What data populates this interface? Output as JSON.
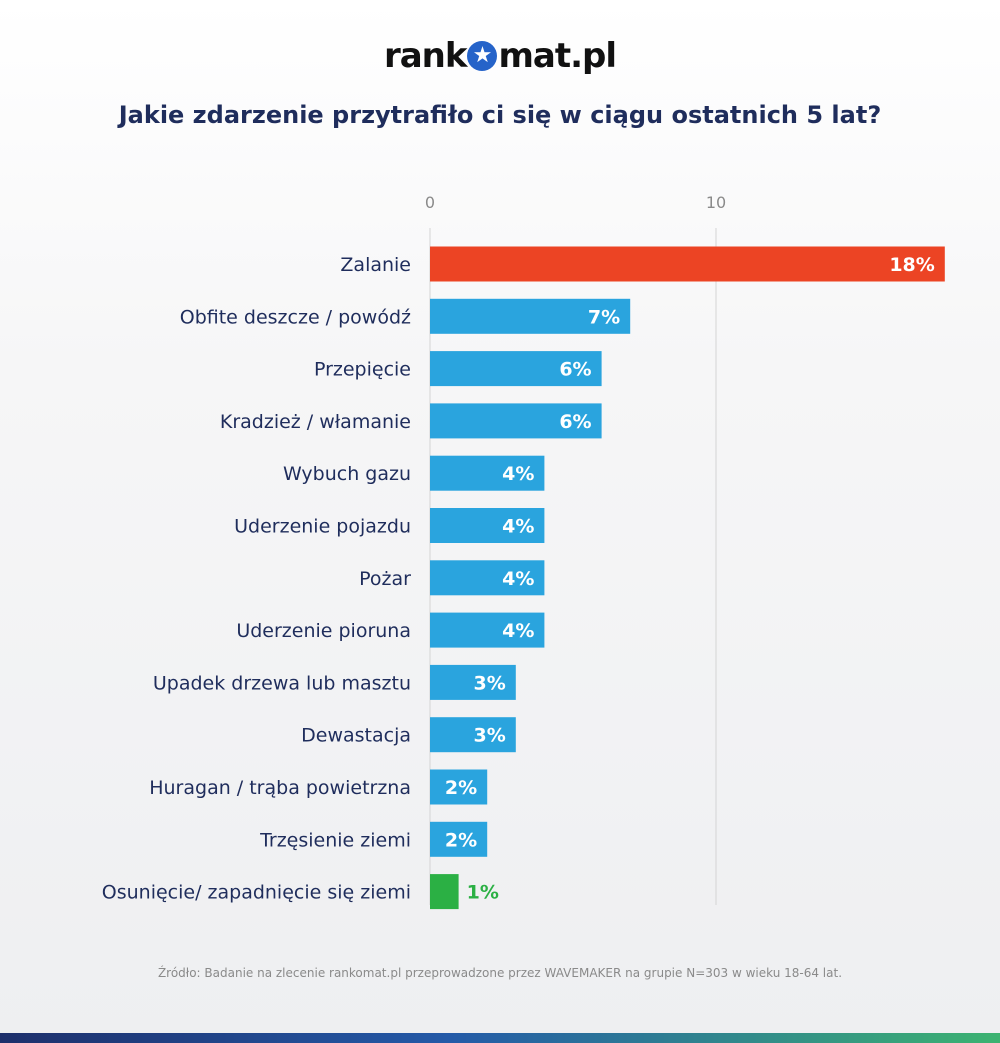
{
  "header": {
    "logo_text": "rankomat.pl",
    "title": "Jakie zdarzenie przytrafiło ci się w ciągu ostatnich 5 lat?"
  },
  "chart_data": {
    "type": "bar",
    "orientation": "horizontal",
    "title": "Jakie zdarzenie przytrafiło ci się w ciągu ostatnich 5 lat?",
    "xlabel": "",
    "ylabel": "",
    "xlim": [
      0,
      18
    ],
    "x_ticks": [
      "0",
      "10"
    ],
    "grid": "vertical lines at 0 and 10",
    "legend": "none",
    "categories": [
      "Zalanie",
      "Obfite deszcze / powódź",
      "Przepięcie",
      "Kradzież / włamanie",
      "Wybuch gazu",
      "Uderzenie pojazdu",
      "Pożar",
      "Uderzenie pioruna",
      "Upadek drzewa lub masztu",
      "Dewastacja",
      "Huragan / trąba powietrzna",
      "Trzęsienie ziemi",
      "Osunięcie/ zapadnięcie się ziemi"
    ],
    "values": [
      18,
      7,
      6,
      6,
      4,
      4,
      4,
      4,
      3,
      3,
      2,
      2,
      1
    ],
    "value_labels": [
      "18%",
      "7%",
      "6%",
      "6%",
      "4%",
      "4%",
      "4%",
      "4%",
      "3%",
      "3%",
      "2%",
      "2%",
      "1%"
    ],
    "bar_colors": [
      "#ec4424",
      "#2aa4de",
      "#2aa4de",
      "#2aa4de",
      "#2aa4de",
      "#2aa4de",
      "#2aa4de",
      "#2aa4de",
      "#2aa4de",
      "#2aa4de",
      "#2aa4de",
      "#2aa4de",
      "#2bb044"
    ]
  },
  "colors": {
    "title": "#1f2d5c",
    "category_label": "#1f2d5c",
    "grid": "#d4d4d4",
    "tick": "#8a8a8a",
    "label_inside": "#ffffff",
    "label_outside_small": "#2bb044"
  },
  "footer": {
    "source": "Źródło: Badanie na zlecenie rankomat.pl przeprowadzone przez WAVEMAKER na grupie N=303 w wieku 18-64 lat."
  }
}
